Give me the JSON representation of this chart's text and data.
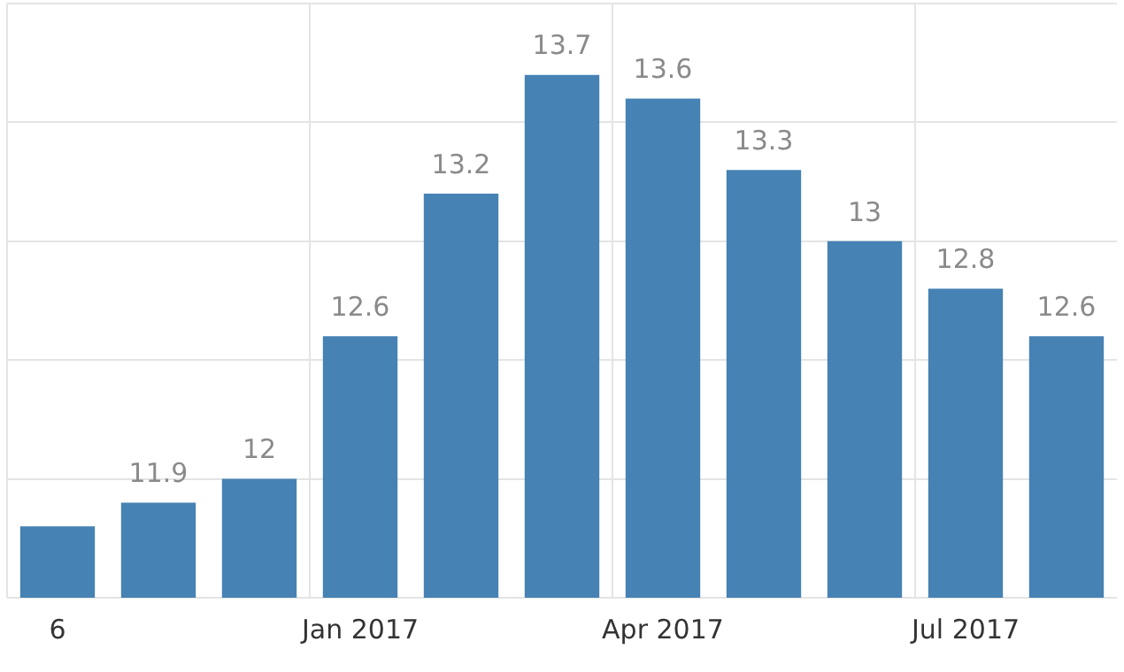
{
  "chart_data": {
    "type": "bar",
    "categories": [
      "6",
      null,
      null,
      "Jan 2017",
      null,
      null,
      "Apr 2017",
      null,
      null,
      "Jul 2017",
      null
    ],
    "values": [
      11.8,
      11.9,
      12,
      12.6,
      13.2,
      13.7,
      13.6,
      13.3,
      13,
      12.8,
      12.6
    ],
    "value_labels": [
      null,
      "11.9",
      "12",
      "12.6",
      "13.2",
      "13.7",
      "13.6",
      "13.3",
      "13",
      "12.8",
      "12.6"
    ],
    "color": "#4682b4",
    "ylim": [
      11.5,
      14
    ],
    "yticks": [
      {
        "value": 11.5,
        "label": null
      },
      {
        "value": 12,
        "label": null
      },
      {
        "value": 12.5,
        "label": null
      },
      {
        "value": 13,
        "label": null
      },
      {
        "value": 13.5,
        "label": null
      },
      {
        "value": 14,
        "label": null
      }
    ],
    "tick_labels": "x",
    "grid": true,
    "legend": false
  }
}
